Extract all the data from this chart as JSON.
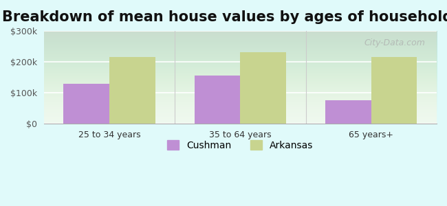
{
  "title": "Breakdown of mean house values by ages of householders",
  "categories": [
    "25 to 34 years",
    "35 to 64 years",
    "65 years+"
  ],
  "cushman_values": [
    130000,
    155000,
    75000
  ],
  "arkansas_values": [
    215000,
    230000,
    215000
  ],
  "cushman_color": "#bf8fd4",
  "arkansas_color": "#c8d48f",
  "background_color": "#e0fafa",
  "ylim": [
    0,
    300000
  ],
  "yticks": [
    0,
    100000,
    200000,
    300000
  ],
  "ytick_labels": [
    "$0",
    "$100k",
    "$200k",
    "$300k"
  ],
  "bar_width": 0.35,
  "legend_cushman": "Cushman",
  "legend_arkansas": "Arkansas",
  "title_fontsize": 15,
  "watermark": "City-Data.com"
}
